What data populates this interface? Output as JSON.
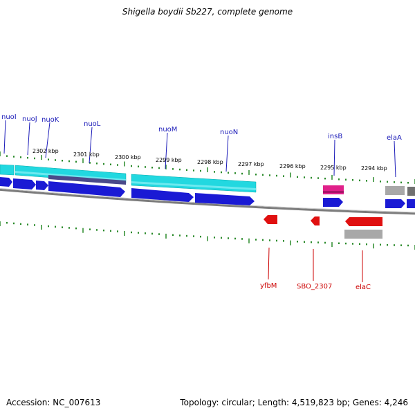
{
  "title": "Shigella boydii Sb227, complete genome",
  "footer": {
    "accession": "Accession: NC_007613",
    "topology": "Topology: circular; Length: 4,519,823 bp; Genes: 4,246"
  },
  "ruler_labels": [
    "2302 kbp",
    "2301 kbp",
    "2300 kbp",
    "2299 kbp",
    "2298 kbp",
    "2297 kbp",
    "2296 kbp",
    "2295 kbp",
    "2294 kbp"
  ],
  "genes_top": [
    "nuoI",
    "nuoJ",
    "nuoK",
    "nuoL",
    "nuoM",
    "nuoN",
    "insB",
    "elaA"
  ],
  "genes_bottom": [
    "yfbM",
    "SBO_2307",
    "elaC"
  ],
  "colors": {
    "top_gene_label": "#1a1ab8",
    "bottom_gene_label": "#cc0000",
    "tick": "#2a8a2a",
    "cyan_band": "#22d8e0",
    "blue_arrow": "#1a1ad4",
    "red_arrow": "#e01010",
    "magenta": "#e0208a",
    "grey": "#a8a8a8",
    "backbone": "#888888"
  }
}
